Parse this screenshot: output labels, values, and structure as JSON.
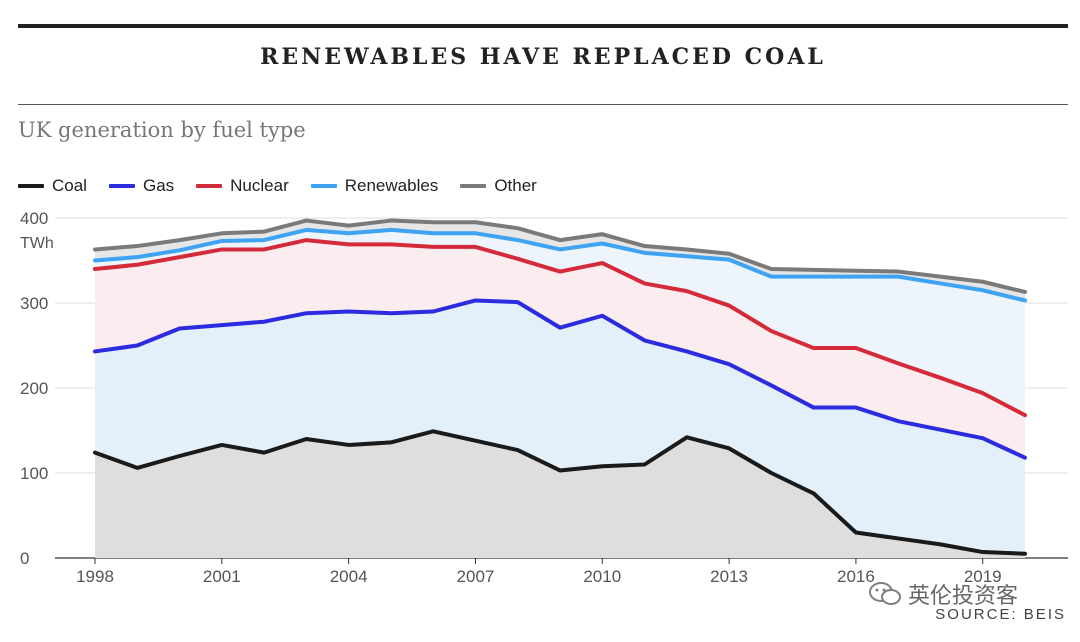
{
  "title": "RENEWABLES HAVE REPLACED COAL",
  "subtitle": "UK generation by fuel type",
  "source": "SOURCE: BEIS",
  "watermark": "英伦投资客",
  "chart_data": {
    "type": "area",
    "stacked": true,
    "x": [
      1998,
      1999,
      2000,
      2001,
      2002,
      2003,
      2004,
      2005,
      2006,
      2007,
      2008,
      2009,
      2010,
      2011,
      2012,
      2013,
      2014,
      2015,
      2016,
      2017,
      2018,
      2019,
      2020
    ],
    "xticks": [
      "1998",
      "2001",
      "2004",
      "2007",
      "2010",
      "2013",
      "2016",
      "2019"
    ],
    "yticks": [
      "0",
      "100",
      "200",
      "300",
      "400"
    ],
    "yunit": "TWh",
    "ylim": [
      0,
      410
    ],
    "grid": true,
    "legend_position": "top-left",
    "series": [
      {
        "name": "Coal",
        "color": "#1a1a1a",
        "fill": "#dedede",
        "values": [
          124,
          106,
          120,
          133,
          124,
          140,
          133,
          136,
          149,
          138,
          127,
          103,
          108,
          110,
          142,
          129,
          100,
          76,
          30,
          23,
          16,
          7,
          5
        ]
      },
      {
        "name": "Gas",
        "color": "#2b2be0",
        "fill": "#e3f0fa",
        "values": [
          243,
          250,
          270,
          274,
          278,
          288,
          290,
          288,
          290,
          303,
          301,
          271,
          285,
          256,
          243,
          228,
          203,
          177,
          177,
          161,
          151,
          141,
          118
        ]
      },
      {
        "name": "Nuclear",
        "color": "#d42a3a",
        "fill": "#fbecef",
        "values": [
          340,
          345,
          354,
          363,
          363,
          374,
          369,
          369,
          366,
          366,
          352,
          337,
          347,
          323,
          314,
          297,
          267,
          247,
          247,
          229,
          212,
          194,
          168
        ]
      },
      {
        "name": "Renewables",
        "color": "#3ea3f2",
        "fill": "#eef4fb",
        "values": [
          350,
          354,
          362,
          373,
          374,
          386,
          382,
          386,
          382,
          382,
          374,
          363,
          370,
          359,
          355,
          351,
          331,
          331,
          331,
          331,
          323,
          315,
          303
        ]
      },
      {
        "name": "Other",
        "color": "#7a7a7a",
        "fill": "#e6e6e6",
        "values": [
          363,
          367,
          374,
          382,
          384,
          397,
          391,
          397,
          395,
          395,
          388,
          374,
          381,
          367,
          363,
          358,
          340,
          339,
          338,
          337,
          331,
          325,
          313
        ]
      }
    ]
  }
}
